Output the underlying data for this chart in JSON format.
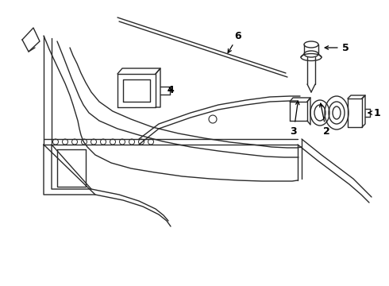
{
  "background_color": "#ffffff",
  "line_color": "#2a2a2a",
  "lw": 1.0
}
